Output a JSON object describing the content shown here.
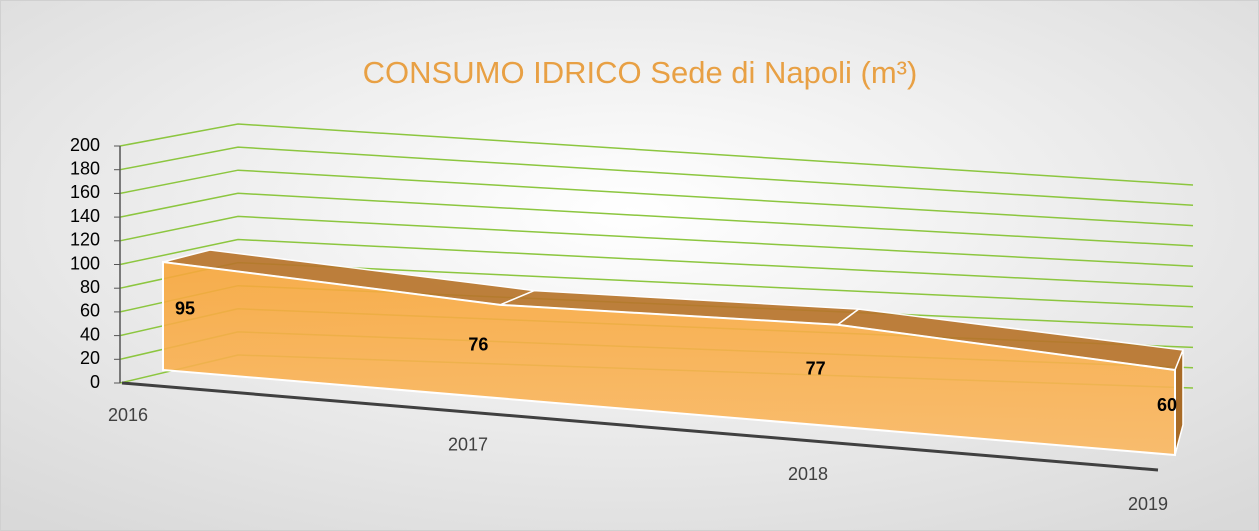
{
  "chart_data": {
    "type": "area",
    "title": "CONSUMO IDRICO  Sede di Napoli (m³)",
    "categories": [
      "2016",
      "2017",
      "2018",
      "2019"
    ],
    "values": [
      95,
      76,
      77,
      60
    ],
    "color": "#f5a43c",
    "ylim": [
      0,
      200
    ],
    "yticks": [
      0,
      20,
      40,
      60,
      80,
      100,
      120,
      140,
      160,
      180,
      200
    ],
    "grid": true,
    "grid_color": "#8cc63f"
  }
}
